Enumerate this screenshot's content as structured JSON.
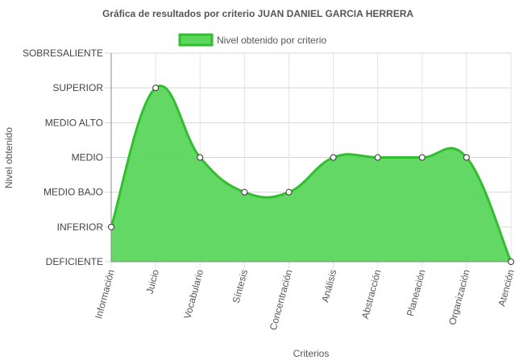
{
  "chart_data": {
    "type": "area",
    "title": "Gráfica de resultados por criterio JUAN DANIEL GARCIA HERRERA",
    "xlabel": "Criterios",
    "ylabel": "Nivel obtenido",
    "y_levels": [
      "DEFICIENTE",
      "INFERIOR",
      "MEDIO BAJO",
      "MEDIO",
      "MEDIO ALTO",
      "SUPERIOR",
      "SOBRESALIENTE"
    ],
    "ylim": [
      0,
      6
    ],
    "categories": [
      "Información",
      "Juicio",
      "Vocabulario",
      "Síntesis",
      "Concentración",
      "Análisis",
      "Abstracción",
      "Planeación",
      "Organización",
      "Atención"
    ],
    "series": [
      {
        "name": "Nivel obtenido por criterio",
        "values": [
          1,
          5,
          3,
          2,
          2,
          3,
          3,
          3,
          3,
          0
        ]
      }
    ],
    "colors": {
      "fill": "#5cd65c",
      "stroke": "#2fbf2f",
      "point_fill": "#ffffff",
      "point_stroke": "#333333"
    },
    "grid": true,
    "legend_position": "top"
  }
}
